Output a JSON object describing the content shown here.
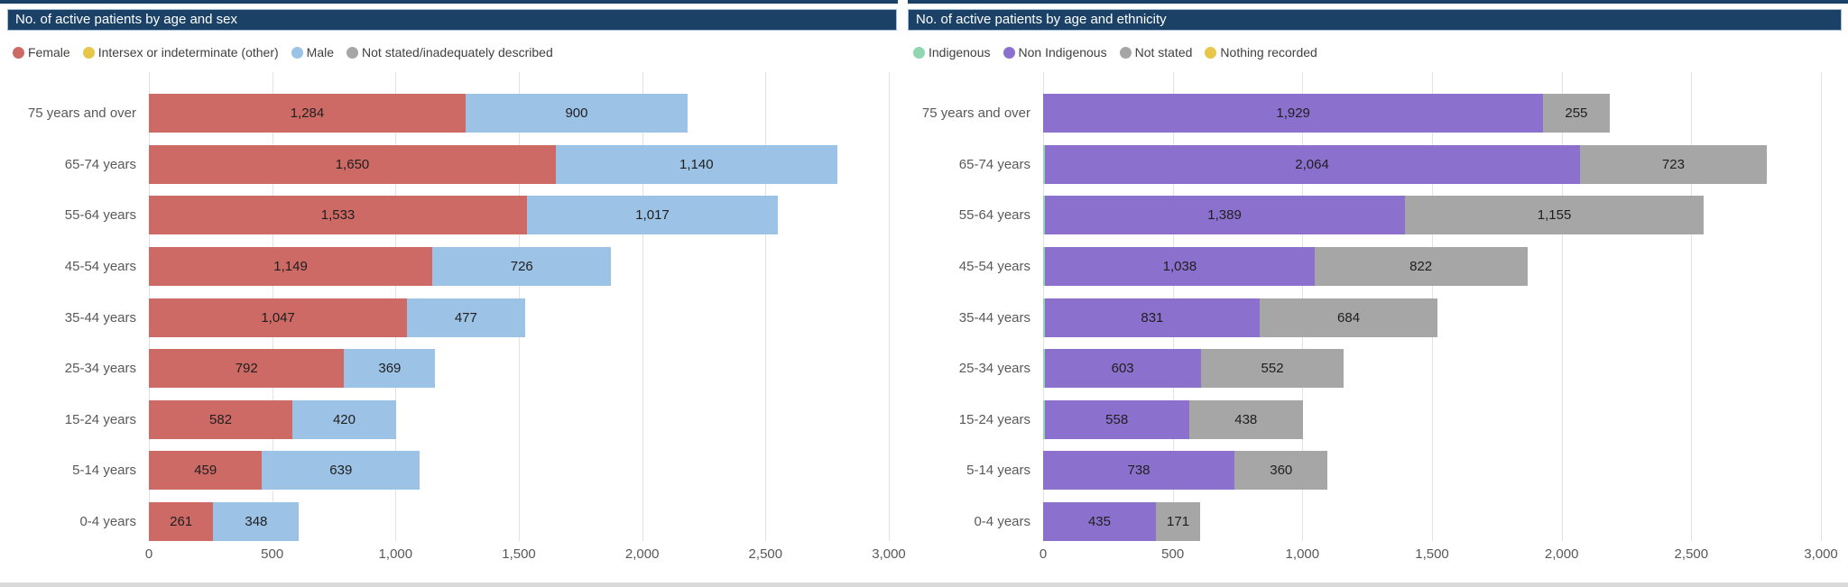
{
  "page": {
    "top_strip_color": "#1B4266",
    "bottom_strip_color": "#D9D9D9",
    "background": "#FFFFFF",
    "title_bar_color": "#1B4266",
    "gridline_color": "#E2E2E2",
    "axis_text_color": "#595959",
    "legend_text_color": "#404040"
  },
  "chart_data": [
    {
      "type": "bar",
      "orientation": "horizontal",
      "stacked": true,
      "title": "No. of active patients by age and sex",
      "legend_position": "top",
      "gridlines": true,
      "categories": [
        "75 years and over",
        "65-74 years",
        "55-64 years",
        "45-54 years",
        "35-44 years",
        "25-34 years",
        "15-24 years",
        "5-14 years",
        "0-4 years"
      ],
      "legend": [
        {
          "label": "Female",
          "color": "#CD6A65"
        },
        {
          "label": "Intersex or indeterminate (other)",
          "color": "#E8C64A"
        },
        {
          "label": "Male",
          "color": "#9CC2E5"
        },
        {
          "label": "Not stated/inadequately described",
          "color": "#A6A6A6"
        }
      ],
      "series": [
        {
          "name": "Female",
          "color": "#CD6A65",
          "labeled": true,
          "values": [
            1284,
            1650,
            1533,
            1149,
            1047,
            792,
            582,
            459,
            261
          ]
        },
        {
          "name": "Intersex or indeterminate (other)",
          "color": "#E8C64A",
          "labeled": false,
          "values": [
            0,
            0,
            0,
            0,
            0,
            0,
            0,
            0,
            0
          ]
        },
        {
          "name": "Male",
          "color": "#9CC2E5",
          "labeled": true,
          "values": [
            900,
            1140,
            1017,
            726,
            477,
            369,
            420,
            639,
            348
          ]
        },
        {
          "name": "Not stated/inadequately described",
          "color": "#A6A6A6",
          "labeled": false,
          "values": [
            0,
            0,
            0,
            0,
            0,
            0,
            0,
            0,
            0
          ]
        }
      ],
      "xlim": [
        0,
        3000
      ],
      "x_ticks": [
        "0",
        "500",
        "1,000",
        "1,500",
        "2,000",
        "2,500",
        "3,000"
      ]
    },
    {
      "type": "bar",
      "orientation": "horizontal",
      "stacked": true,
      "title": "No. of active patients by age and ethnicity",
      "legend_position": "top",
      "gridlines": true,
      "categories": [
        "75 years and over",
        "65-74 years",
        "55-64 years",
        "45-54 years",
        "35-44 years",
        "25-34 years",
        "15-24 years",
        "5-14 years",
        "0-4 years"
      ],
      "legend": [
        {
          "label": "Indigenous",
          "color": "#8FD6B1"
        },
        {
          "label": "Non Indigenous",
          "color": "#8C70CE"
        },
        {
          "label": "Not stated",
          "color": "#A6A6A6"
        },
        {
          "label": "Nothing recorded",
          "color": "#E8C64A"
        }
      ],
      "series": [
        {
          "name": "Indigenous",
          "color": "#8FD6B1",
          "labeled": false,
          "values": [
            0,
            3,
            4,
            8,
            4,
            3,
            3,
            0,
            0
          ]
        },
        {
          "name": "Non Indigenous",
          "color": "#8C70CE",
          "labeled": true,
          "values": [
            1929,
            2064,
            1389,
            1038,
            831,
            603,
            558,
            738,
            435
          ]
        },
        {
          "name": "Not stated",
          "color": "#A6A6A6",
          "labeled": true,
          "values": [
            255,
            723,
            1155,
            822,
            684,
            552,
            438,
            360,
            171
          ]
        },
        {
          "name": "Nothing recorded",
          "color": "#E8C64A",
          "labeled": false,
          "values": [
            0,
            0,
            0,
            0,
            0,
            0,
            0,
            0,
            0
          ]
        }
      ],
      "xlim": [
        0,
        3000
      ],
      "x_ticks": [
        "0",
        "500",
        "1,000",
        "1,500",
        "2,000",
        "2,500",
        "3,000"
      ]
    }
  ]
}
